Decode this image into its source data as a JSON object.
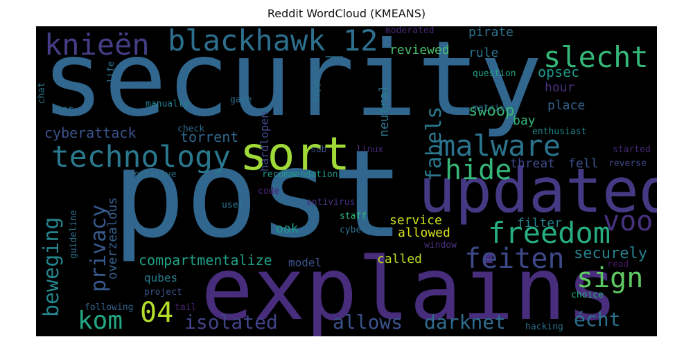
{
  "chart_data": {
    "type": "wordcloud",
    "title": "Reddit WordCloud (KMEANS)",
    "words": [
      {
        "text": "security",
        "color": "#31668e"
      },
      {
        "text": "post",
        "color": "#31668e"
      },
      {
        "text": "explains",
        "color": "#472d7b"
      },
      {
        "text": "updated",
        "color": "#443a83"
      },
      {
        "text": "sort",
        "color": "#a0da39"
      },
      {
        "text": "technology",
        "color": "#2a788e"
      },
      {
        "text": "malware",
        "color": "#2c738e"
      },
      {
        "text": "freedom",
        "color": "#27ad81"
      },
      {
        "text": "blackhawk_12",
        "color": "#2d708e"
      },
      {
        "text": "knieën",
        "color": "#433e85"
      },
      {
        "text": "slecht",
        "color": "#35b779"
      },
      {
        "text": "hide",
        "color": "#35b779"
      },
      {
        "text": "feiten",
        "color": "#3e4989"
      },
      {
        "text": "voor",
        "color": "#46327e"
      },
      {
        "text": "sign",
        "color": "#5ec962"
      },
      {
        "text": "kom",
        "color": "#22a884"
      },
      {
        "text": "04",
        "color": "#b5de2b"
      },
      {
        "text": "isolated",
        "color": "#414487"
      },
      {
        "text": "allows",
        "color": "#3b528b"
      },
      {
        "text": "darknet",
        "color": "#2f6c8e"
      },
      {
        "text": "écht",
        "color": "#2c728e"
      },
      {
        "text": "beweging",
        "color": "#25858e"
      },
      {
        "text": "privacy",
        "color": "#38598c"
      },
      {
        "text": "fabels",
        "color": "#2a788e"
      },
      {
        "text": "securely",
        "color": "#26828e"
      },
      {
        "text": "swoop",
        "color": "#38b977"
      },
      {
        "text": "cyberattack",
        "color": "#3b528b"
      },
      {
        "text": "compartmentalize",
        "color": "#1fa188"
      },
      {
        "text": "torrent",
        "color": "#31688e"
      },
      {
        "text": "opsec",
        "color": "#1f988b"
      },
      {
        "text": "reviewed",
        "color": "#4ac16d"
      },
      {
        "text": "rule",
        "color": "#2c738e"
      },
      {
        "text": "pirate",
        "color": "#2c728e"
      },
      {
        "text": "place",
        "color": "#34618d"
      },
      {
        "text": "hour",
        "color": "#472f7d"
      },
      {
        "text": "bay",
        "color": "#35b779"
      },
      {
        "text": "threat",
        "color": "#3e4989"
      },
      {
        "text": "fell",
        "color": "#3b528b"
      },
      {
        "text": "neutral",
        "color": "#2a788e"
      },
      {
        "text": "service",
        "color": "#c8e020"
      },
      {
        "text": "allowed",
        "color": "#d8e219"
      },
      {
        "text": "called",
        "color": "#bddf26"
      },
      {
        "text": "filter",
        "color": "#26828e"
      },
      {
        "text": "model",
        "color": "#3b528b"
      },
      {
        "text": "overzealous",
        "color": "#355f8d"
      },
      {
        "text": "qubes",
        "color": "#287d8e"
      },
      {
        "text": "ook",
        "color": "#1f9e89"
      },
      {
        "text": "hardlopen",
        "color": "#3f4788"
      },
      {
        "text": "moderated",
        "color": "#482878"
      },
      {
        "text": "question",
        "color": "#1fa287"
      },
      {
        "text": "matrix",
        "color": "#2c738e"
      },
      {
        "text": "enthusiast",
        "color": "#23898e"
      },
      {
        "text": "manually",
        "color": "#26828e"
      },
      {
        "text": "game",
        "color": "#2d708e"
      },
      {
        "text": "check",
        "color": "#30698e"
      },
      {
        "text": "support",
        "color": "#2c738e"
      },
      {
        "text": "sub",
        "color": "#3b528b"
      },
      {
        "text": "linux",
        "color": "#482979"
      },
      {
        "text": "started",
        "color": "#472c7a"
      },
      {
        "text": "reverse",
        "color": "#3e4989"
      },
      {
        "text": "recommendation",
        "color": "#1f968b"
      },
      {
        "text": "relative",
        "color": "#2c728e"
      },
      {
        "text": "code",
        "color": "#482475"
      },
      {
        "text": "user",
        "color": "#2a788e"
      },
      {
        "text": "antivirus",
        "color": "#46307e"
      },
      {
        "text": "staff",
        "color": "#31b57b"
      },
      {
        "text": "cyber",
        "color": "#2d708e"
      },
      {
        "text": "window",
        "color": "#46337f"
      },
      {
        "text": "read",
        "color": "#471365"
      },
      {
        "text": "choice",
        "color": "#29af7f"
      },
      {
        "text": "project",
        "color": "#3b528b"
      },
      {
        "text": "following",
        "color": "#33638d"
      },
      {
        "text": "tail",
        "color": "#482475"
      },
      {
        "text": "hacking",
        "color": "#2c728e"
      },
      {
        "text": "guideline",
        "color": "#2d708e"
      },
      {
        "text": "life",
        "color": "#2c738e"
      },
      {
        "text": "chat",
        "color": "#2a788e"
      },
      {
        "text": "tor",
        "color": "#2d708e"
      }
    ]
  }
}
